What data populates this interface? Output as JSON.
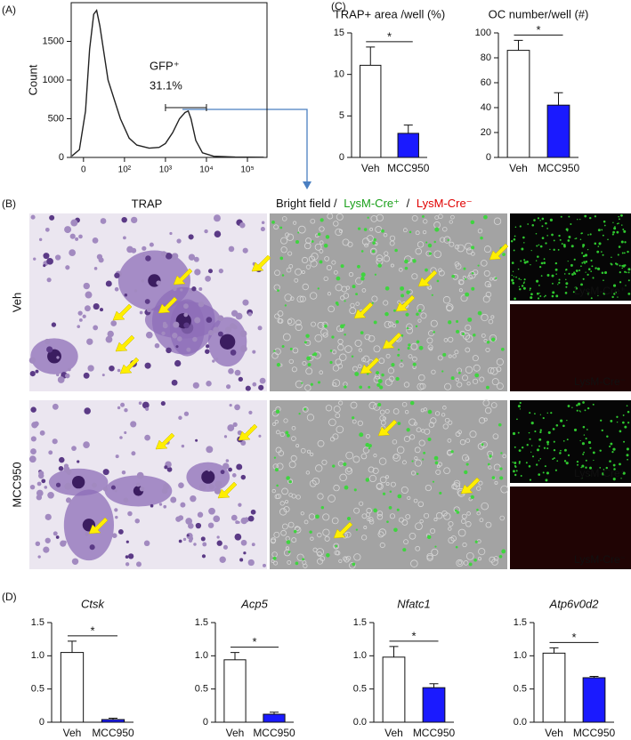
{
  "panels": {
    "labels": [
      "(A)",
      "(B)",
      "(C)",
      "(D)"
    ],
    "B": {
      "col_trap": "TRAP",
      "col_bright": [
        "Bright field /",
        "LysM-Cre⁺",
        "/",
        "LysM-Cre⁻"
      ],
      "rows": [
        "Veh",
        "MCC950"
      ],
      "fluor_pos": "LysM-Cre⁺",
      "fluor_neg": "LysM-Cre⁻"
    }
  },
  "chart_data": [
    {
      "type": "line",
      "ylabel": "Count",
      "color": "#222222",
      "xscale": "symlog",
      "linthresh": 100,
      "x": [
        -28,
        -10,
        5,
        15,
        25,
        32,
        40,
        60,
        90,
        130,
        200,
        400,
        700,
        1000,
        1500,
        2200,
        3000,
        3600,
        4200,
        5500,
        8000,
        15000,
        50000,
        250000
      ],
      "values": [
        20,
        100,
        600,
        1400,
        1850,
        1900,
        1700,
        1000,
        500,
        250,
        160,
        120,
        130,
        180,
        320,
        500,
        580,
        600,
        500,
        220,
        60,
        15,
        5,
        2
      ],
      "xlim": [
        -30,
        300000
      ],
      "ylim": [
        0,
        2000
      ],
      "xticks": [
        0,
        {
          "value": 100,
          "label": "10²"
        },
        {
          "value": 1000,
          "label": "10³"
        },
        {
          "value": 10000,
          "label": "10⁴"
        },
        {
          "value": 100000,
          "label": "10⁵"
        }
      ],
      "yticks": [
        0,
        500,
        1000,
        1500
      ],
      "annotations": [
        "GFP⁺",
        "31.1%"
      ]
    },
    {
      "type": "bar",
      "title": "TRAP+ area /well (%)",
      "categories": [
        "Veh",
        "MCC950"
      ],
      "values": [
        11.1,
        2.9
      ],
      "errors": [
        2.2,
        1.0
      ],
      "colors": [
        "#ffffff",
        "#1a1aff"
      ],
      "ylim": [
        0,
        15
      ],
      "yticks": [
        0,
        5,
        10,
        15
      ],
      "annotation": "*"
    },
    {
      "type": "bar",
      "title": "OC number/well (#)",
      "categories": [
        "Veh",
        "MCC950"
      ],
      "values": [
        86,
        42
      ],
      "errors": [
        8,
        10
      ],
      "colors": [
        "#ffffff",
        "#1a1aff"
      ],
      "ylim": [
        0,
        100
      ],
      "yticks": [
        0,
        20,
        40,
        60,
        80,
        100
      ],
      "annotation": "*"
    },
    {
      "type": "bar",
      "title": "Ctsk",
      "title_style": "italic",
      "categories": [
        "Veh",
        "MCC950"
      ],
      "values": [
        1.05,
        0.04
      ],
      "errors": [
        0.17,
        0.02
      ],
      "colors": [
        "#ffffff",
        "#1a1aff"
      ],
      "ylim": [
        0,
        1.5
      ],
      "yticks": [
        0,
        0.5,
        {
          "value": 1,
          "label": "1.0"
        },
        1.5
      ],
      "annotation": "*"
    },
    {
      "type": "bar",
      "title": "Acp5",
      "title_style": "italic",
      "categories": [
        "Veh",
        "MCC950"
      ],
      "values": [
        0.94,
        0.12
      ],
      "errors": [
        0.11,
        0.03
      ],
      "colors": [
        "#ffffff",
        "#1a1aff"
      ],
      "ylim": [
        0,
        1.5
      ],
      "yticks": [
        0,
        0.5,
        {
          "value": 1,
          "label": "1.0"
        },
        1.5
      ],
      "annotation": "*"
    },
    {
      "type": "bar",
      "title": "Nfatc1",
      "title_style": "italic",
      "categories": [
        "Veh",
        "MCC950"
      ],
      "values": [
        0.98,
        0.52
      ],
      "errors": [
        0.16,
        0.06
      ],
      "colors": [
        "#ffffff",
        "#1a1aff"
      ],
      "ylim": [
        0,
        1.5
      ],
      "yticks": [
        {
          "value": 0,
          "label": "0.0"
        },
        0.5,
        {
          "value": 1,
          "label": "1.0"
        },
        1.5
      ],
      "annotation": "*"
    },
    {
      "type": "bar",
      "title": "Atp6v0d2",
      "title_style": "italic",
      "categories": [
        "Veh",
        "MCC950"
      ],
      "values": [
        1.04,
        0.67
      ],
      "errors": [
        0.08,
        0.02
      ],
      "colors": [
        "#ffffff",
        "#1a1aff"
      ],
      "ylim": [
        0,
        1.5
      ],
      "yticks": [
        {
          "value": 0,
          "label": "0.0"
        },
        0.5,
        {
          "value": 1,
          "label": "1.0"
        },
        1.5
      ],
      "annotation": "*"
    }
  ]
}
